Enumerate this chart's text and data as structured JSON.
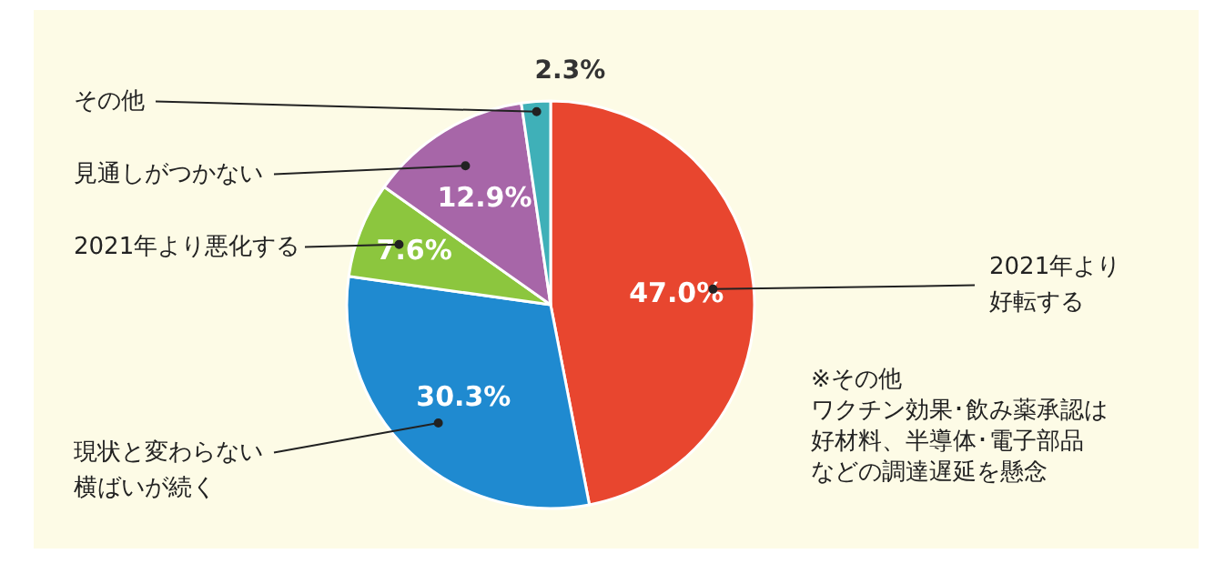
{
  "chart_data": {
    "type": "pie",
    "categories": [
      "2021年より好転する",
      "現状と変わらない横ばいが続く",
      "2021年より悪化する",
      "見通しがつかない",
      "その他"
    ],
    "values": [
      47.0,
      30.3,
      7.6,
      12.9,
      2.3
    ],
    "value_labels": [
      "47.0%",
      "30.3%",
      "7.6%",
      "12.9%",
      "2.3%"
    ],
    "colors": [
      "#e8462f",
      "#1f8ad0",
      "#8cc63e",
      "#a766a8",
      "#3fb0b8"
    ],
    "annotations": [
      "※その他",
      "ワクチン効果･飲み薬承認は",
      "好材料、半導体･電子部品",
      "などの調達遅延を懸念"
    ]
  }
}
